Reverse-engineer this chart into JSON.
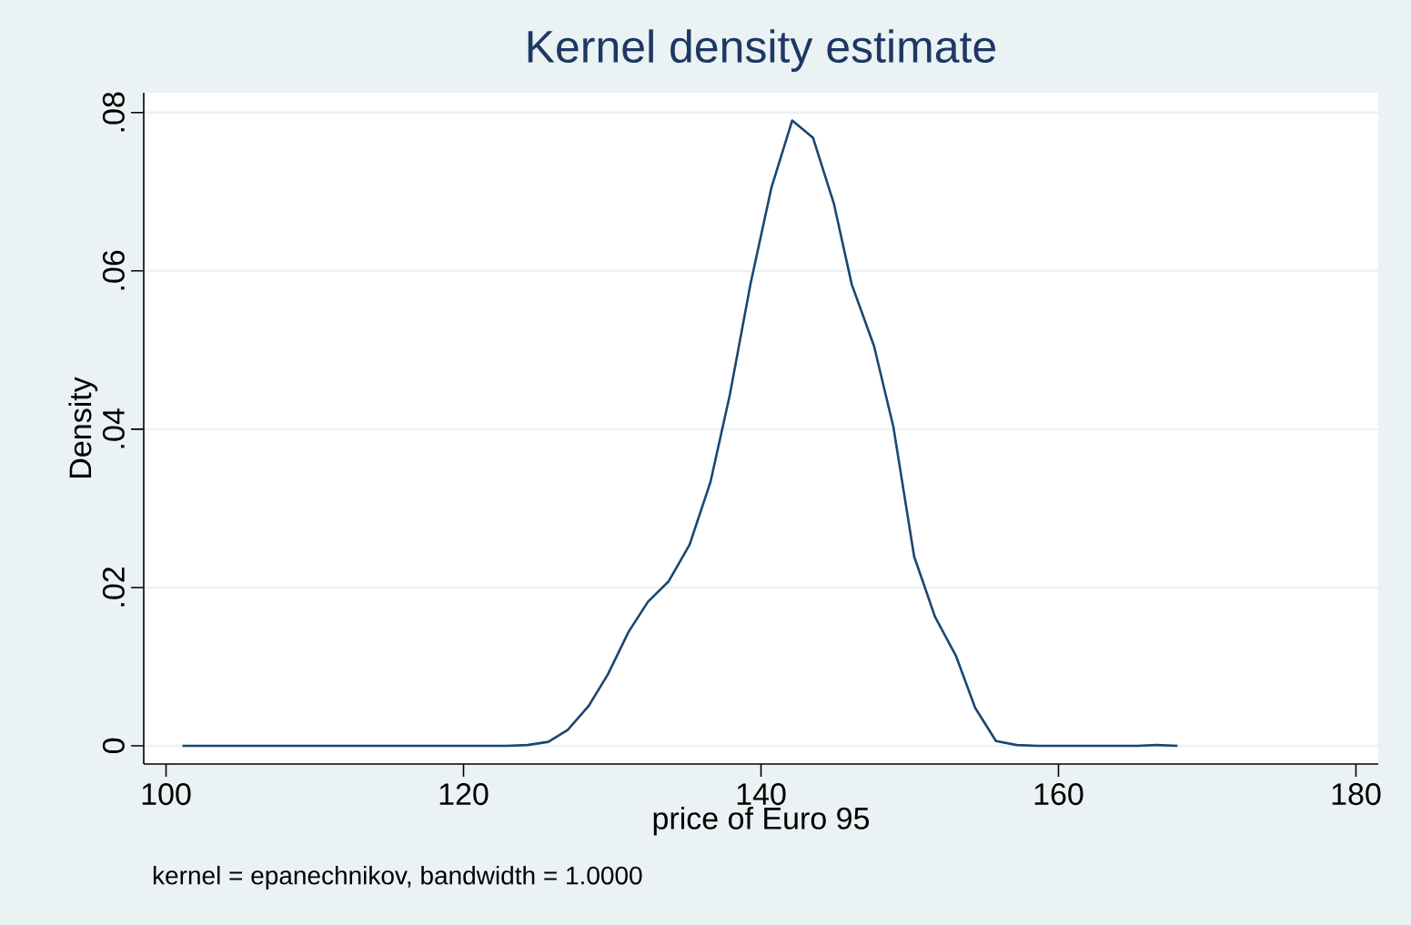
{
  "chart_data": {
    "type": "line",
    "title": "Kernel density estimate",
    "xlabel": "price of Euro 95",
    "ylabel": "Density",
    "annotations": [
      "kernel = epanechnikov, bandwidth = 1.0000"
    ],
    "x": [
      101.1,
      122.9,
      124.3,
      125.7,
      127.0,
      128.4,
      129.7,
      131.1,
      132.4,
      133.8,
      135.2,
      136.6,
      137.9,
      139.3,
      140.7,
      142.1,
      143.5,
      144.9,
      146.1,
      147.6,
      148.9,
      150.3,
      151.7,
      153.1,
      154.4,
      155.8,
      157.2,
      158.6,
      165.3,
      166.6,
      168.0
    ],
    "series": [
      {
        "color": "#1a476f",
        "values": [
          0,
          0,
          0.0001,
          0.0005,
          0.002,
          0.005,
          0.009,
          0.0144,
          0.0182,
          0.0208,
          0.0254,
          0.0333,
          0.0443,
          0.0584,
          0.0705,
          0.079,
          0.0768,
          0.0685,
          0.0583,
          0.0505,
          0.0403,
          0.0239,
          0.0163,
          0.0114,
          0.0048,
          0.0006,
          0.0001,
          0,
          0,
          0.0001,
          0
        ]
      }
    ],
    "xlim": [
      98.5,
      181.5
    ],
    "ylim": [
      -0.0023,
      0.0825
    ],
    "xticks": [
      100,
      120,
      140,
      160,
      180
    ],
    "yticks": [
      {
        "value": 0,
        "label": "0"
      },
      {
        "value": 0.02,
        "label": ".02"
      },
      {
        "value": 0.04,
        "label": ".04"
      },
      {
        "value": 0.06,
        "label": ".06"
      },
      {
        "value": 0.08,
        "label": ".08"
      }
    ],
    "grid": "y"
  }
}
